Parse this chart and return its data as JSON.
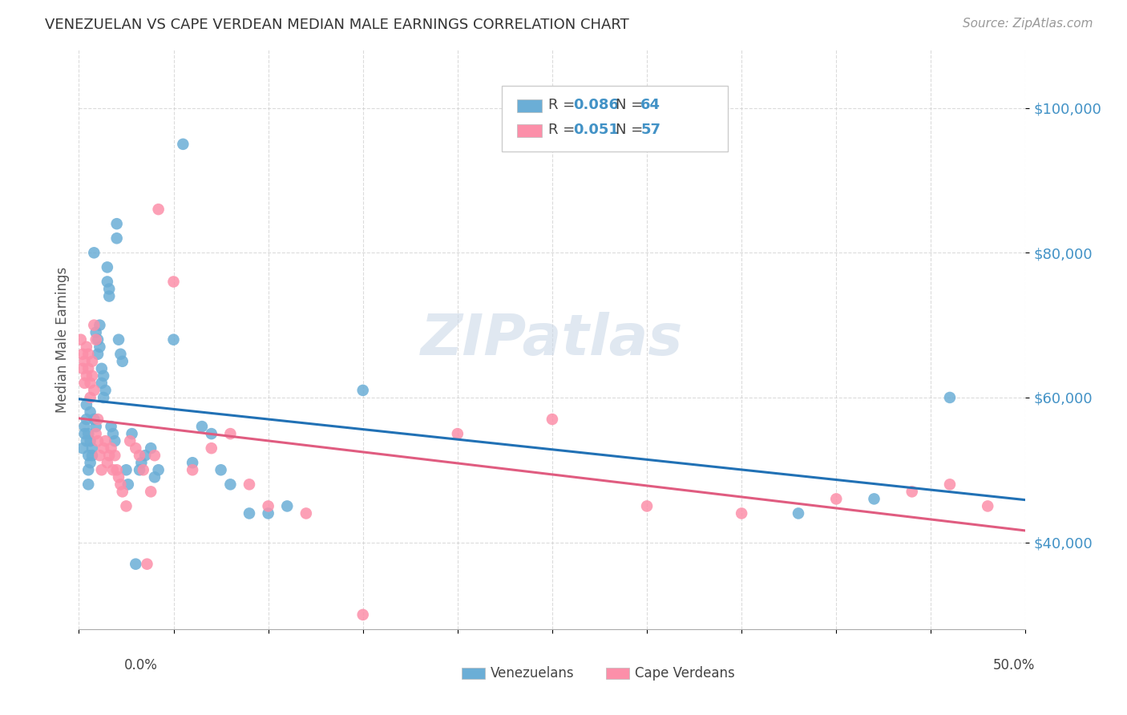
{
  "title": "VENEZUELAN VS CAPE VERDEAN MEDIAN MALE EARNINGS CORRELATION CHART",
  "source": "Source: ZipAtlas.com",
  "ylabel": "Median Male Earnings",
  "watermark": "ZIPatlas",
  "legend_r1": "0.086",
  "legend_n1": "64",
  "legend_r2": "0.051",
  "legend_n2": "57",
  "ytick_values": [
    40000,
    60000,
    80000,
    100000
  ],
  "color_venezuelan": "#6baed6",
  "color_cape_verdean": "#fc8fa9",
  "color_line_venezuelan": "#2171b5",
  "color_line_cape_verdean": "#e05c80",
  "color_ytick": "#4292c6",
  "xmin": 0.0,
  "xmax": 0.5,
  "ymin": 28000,
  "ymax": 108000,
  "venezuelan_x": [
    0.002,
    0.003,
    0.003,
    0.004,
    0.004,
    0.004,
    0.005,
    0.005,
    0.005,
    0.005,
    0.006,
    0.006,
    0.006,
    0.007,
    0.007,
    0.008,
    0.008,
    0.009,
    0.009,
    0.01,
    0.01,
    0.011,
    0.011,
    0.012,
    0.012,
    0.013,
    0.013,
    0.014,
    0.015,
    0.015,
    0.016,
    0.016,
    0.017,
    0.018,
    0.019,
    0.02,
    0.02,
    0.021,
    0.022,
    0.023,
    0.025,
    0.026,
    0.028,
    0.03,
    0.032,
    0.033,
    0.035,
    0.038,
    0.04,
    0.042,
    0.05,
    0.055,
    0.06,
    0.065,
    0.07,
    0.075,
    0.08,
    0.09,
    0.1,
    0.11,
    0.15,
    0.38,
    0.42,
    0.46
  ],
  "venezuelan_y": [
    53000,
    55000,
    56000,
    57000,
    54000,
    59000,
    52000,
    50000,
    48000,
    55000,
    54000,
    51000,
    58000,
    53000,
    52000,
    80000,
    57000,
    56000,
    69000,
    68000,
    66000,
    70000,
    67000,
    64000,
    62000,
    63000,
    60000,
    61000,
    78000,
    76000,
    75000,
    74000,
    56000,
    55000,
    54000,
    84000,
    82000,
    68000,
    66000,
    65000,
    50000,
    48000,
    55000,
    37000,
    50000,
    51000,
    52000,
    53000,
    49000,
    50000,
    68000,
    95000,
    51000,
    56000,
    55000,
    50000,
    48000,
    44000,
    44000,
    45000,
    61000,
    44000,
    46000,
    60000
  ],
  "cape_verdean_x": [
    0.001,
    0.002,
    0.002,
    0.003,
    0.003,
    0.004,
    0.004,
    0.005,
    0.005,
    0.006,
    0.006,
    0.007,
    0.007,
    0.008,
    0.008,
    0.009,
    0.009,
    0.01,
    0.01,
    0.011,
    0.012,
    0.013,
    0.014,
    0.015,
    0.016,
    0.017,
    0.018,
    0.019,
    0.02,
    0.021,
    0.022,
    0.023,
    0.025,
    0.027,
    0.03,
    0.032,
    0.034,
    0.036,
    0.038,
    0.04,
    0.042,
    0.05,
    0.06,
    0.07,
    0.08,
    0.09,
    0.1,
    0.12,
    0.15,
    0.2,
    0.25,
    0.3,
    0.35,
    0.4,
    0.44,
    0.46,
    0.48
  ],
  "cape_verdean_y": [
    68000,
    66000,
    64000,
    65000,
    62000,
    67000,
    63000,
    66000,
    64000,
    62000,
    60000,
    65000,
    63000,
    61000,
    70000,
    68000,
    55000,
    57000,
    54000,
    52000,
    50000,
    53000,
    54000,
    51000,
    52000,
    53000,
    50000,
    52000,
    50000,
    49000,
    48000,
    47000,
    45000,
    54000,
    53000,
    52000,
    50000,
    37000,
    47000,
    52000,
    86000,
    76000,
    50000,
    53000,
    55000,
    48000,
    45000,
    44000,
    30000,
    55000,
    57000,
    45000,
    44000,
    46000,
    47000,
    48000,
    45000
  ]
}
